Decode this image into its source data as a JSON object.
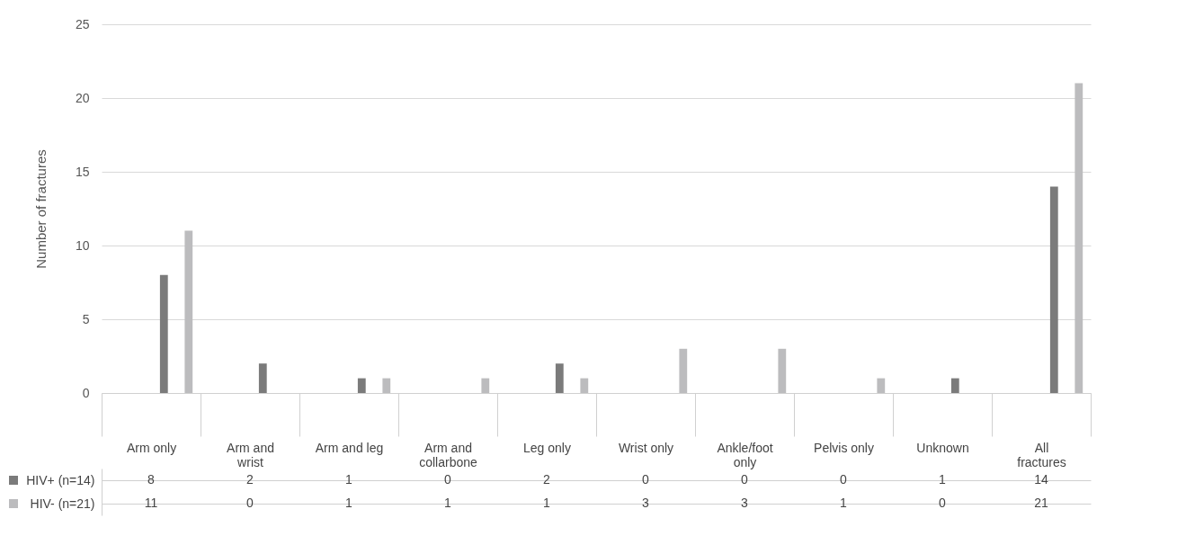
{
  "chart_data": {
    "type": "bar",
    "ylabel": "Number of fractures",
    "categories": [
      "Arm only",
      "Arm and wrist",
      "Arm and leg",
      "Arm and collarbone",
      "Leg only",
      "Wrist only",
      "Ankle/foot only",
      "Pelvis only",
      "Unknown",
      "All fractures"
    ],
    "series": [
      {
        "name": "HIV+ (n=14)",
        "color": "#7b7b7b",
        "values": [
          8,
          2,
          1,
          0,
          2,
          0,
          0,
          0,
          1,
          14
        ]
      },
      {
        "name": "HIV- (n=21)",
        "color": "#bcbcbe",
        "values": [
          11,
          0,
          1,
          1,
          1,
          3,
          3,
          1,
          0,
          21
        ]
      }
    ],
    "ylim": [
      0,
      25
    ],
    "yticks": [
      0,
      5,
      10,
      15,
      20,
      25
    ],
    "grid": "y",
    "legend": "bottom",
    "data_labels": true
  }
}
